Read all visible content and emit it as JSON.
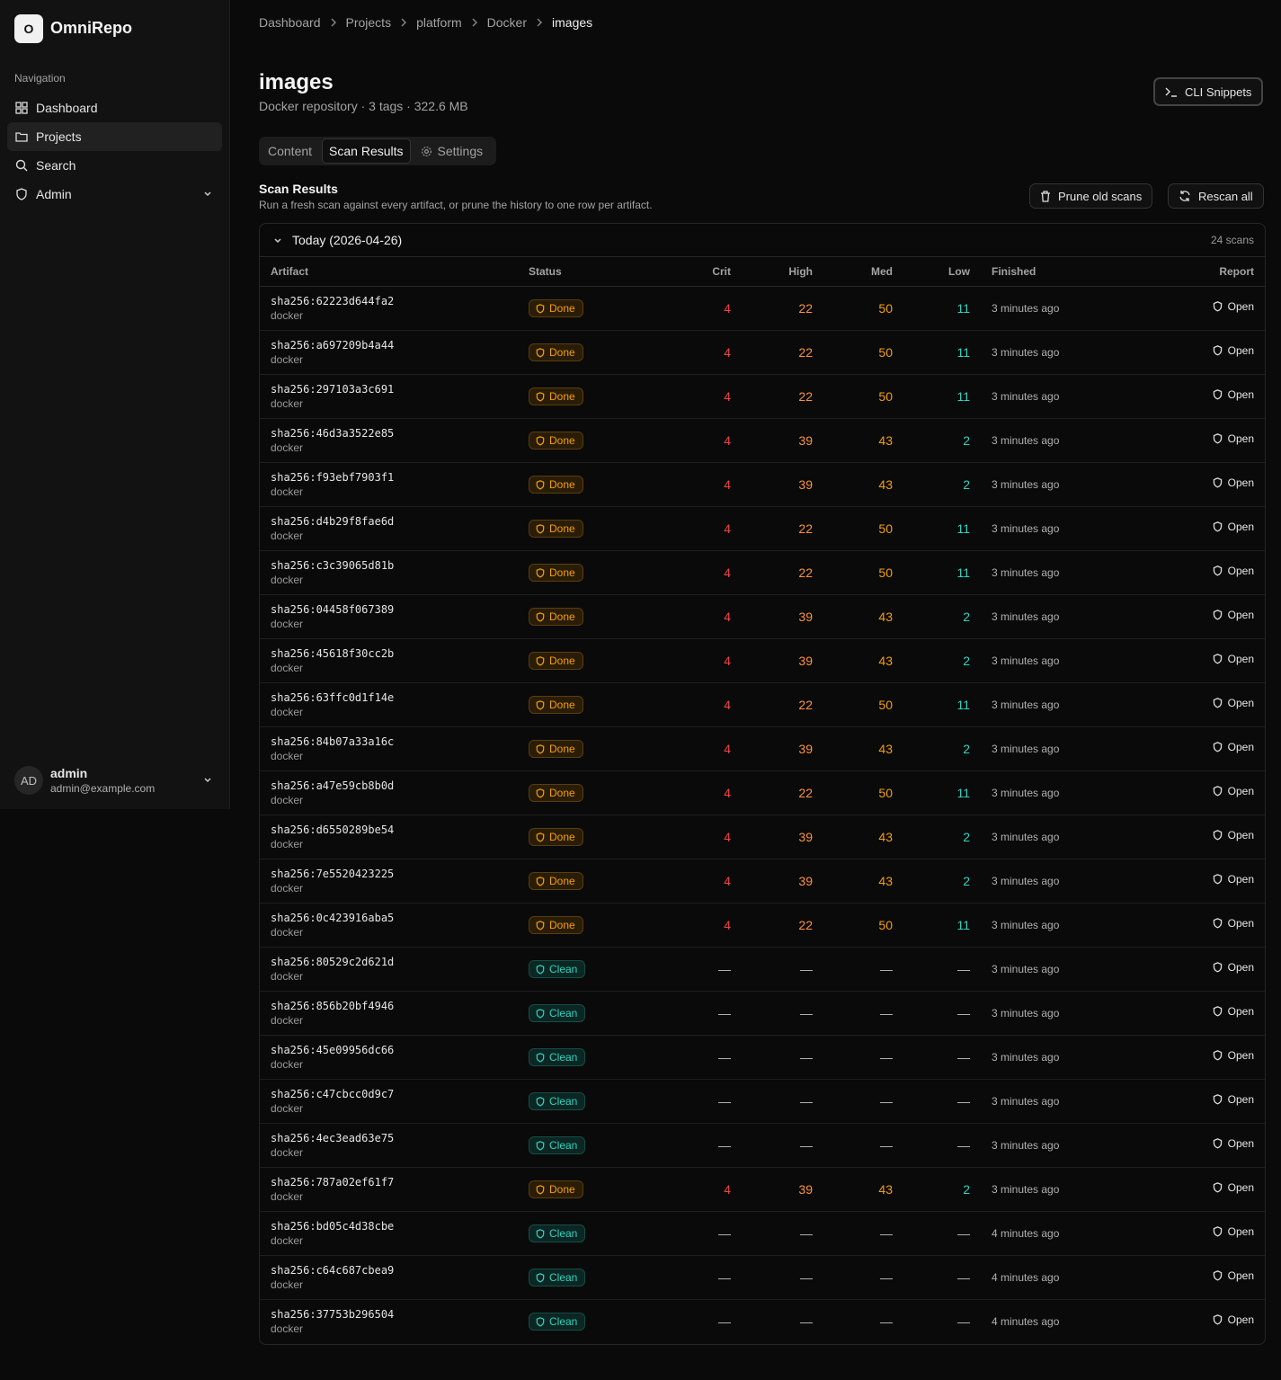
{
  "sidebar": {
    "logo_letter": "O",
    "brand": "OmniRepo",
    "section": "Navigation",
    "nav": [
      "Dashboard",
      "Projects",
      "Search",
      "Admin"
    ],
    "user": {
      "initials": "AD",
      "name": "admin",
      "email": "admin@example.com"
    }
  },
  "breadcrumbs": [
    "Dashboard",
    "Projects",
    "platform",
    "Docker",
    "images"
  ],
  "header": {
    "title": "images",
    "subtitle": "Docker repository · 3 tags · 322.6 MB",
    "button": "CLI Snippets"
  },
  "tabs": [
    "Content",
    "Scan Results",
    "Settings"
  ],
  "section": {
    "title": "Scan Results",
    "description": "Run a fresh scan against every artifact, or prune the history to one row per artifact.",
    "buttons": [
      "Prune old scans",
      "Rescan all"
    ]
  },
  "group": {
    "label": "Today (2026-04-26)",
    "count": "24 scans"
  },
  "table": {
    "columns": [
      "Artifact",
      "Status",
      "Crit",
      "High",
      "Med",
      "Low",
      "Finished",
      "Report"
    ],
    "rows": [
      [
        "sha256:62223d644fa2",
        "docker",
        "Done",
        4,
        22,
        50,
        11,
        "3 minutes ago",
        "Open"
      ],
      [
        "sha256:a697209b4a44",
        "docker",
        "Done",
        4,
        22,
        50,
        11,
        "3 minutes ago",
        "Open"
      ],
      [
        "sha256:297103a3c691",
        "docker",
        "Done",
        4,
        22,
        50,
        11,
        "3 minutes ago",
        "Open"
      ],
      [
        "sha256:46d3a3522e85",
        "docker",
        "Done",
        4,
        39,
        43,
        2,
        "3 minutes ago",
        "Open"
      ],
      [
        "sha256:f93ebf7903f1",
        "docker",
        "Done",
        4,
        39,
        43,
        2,
        "3 minutes ago",
        "Open"
      ],
      [
        "sha256:d4b29f8fae6d",
        "docker",
        "Done",
        4,
        22,
        50,
        11,
        "3 minutes ago",
        "Open"
      ],
      [
        "sha256:c3c39065d81b",
        "docker",
        "Done",
        4,
        22,
        50,
        11,
        "3 minutes ago",
        "Open"
      ],
      [
        "sha256:04458f067389",
        "docker",
        "Done",
        4,
        39,
        43,
        2,
        "3 minutes ago",
        "Open"
      ],
      [
        "sha256:45618f30cc2b",
        "docker",
        "Done",
        4,
        39,
        43,
        2,
        "3 minutes ago",
        "Open"
      ],
      [
        "sha256:63ffc0d1f14e",
        "docker",
        "Done",
        4,
        22,
        50,
        11,
        "3 minutes ago",
        "Open"
      ],
      [
        "sha256:84b07a33a16c",
        "docker",
        "Done",
        4,
        39,
        43,
        2,
        "3 minutes ago",
        "Open"
      ],
      [
        "sha256:a47e59cb8b0d",
        "docker",
        "Done",
        4,
        22,
        50,
        11,
        "3 minutes ago",
        "Open"
      ],
      [
        "sha256:d6550289be54",
        "docker",
        "Done",
        4,
        39,
        43,
        2,
        "3 minutes ago",
        "Open"
      ],
      [
        "sha256:7e5520423225",
        "docker",
        "Done",
        4,
        39,
        43,
        2,
        "3 minutes ago",
        "Open"
      ],
      [
        "sha256:0c423916aba5",
        "docker",
        "Done",
        4,
        22,
        50,
        11,
        "3 minutes ago",
        "Open"
      ],
      [
        "sha256:80529c2d621d",
        "docker",
        "Clean",
        "—",
        "—",
        "—",
        "—",
        "3 minutes ago",
        "Open"
      ],
      [
        "sha256:856b20bf4946",
        "docker",
        "Clean",
        "—",
        "—",
        "—",
        "—",
        "3 minutes ago",
        "Open"
      ],
      [
        "sha256:45e09956dc66",
        "docker",
        "Clean",
        "—",
        "—",
        "—",
        "—",
        "3 minutes ago",
        "Open"
      ],
      [
        "sha256:c47cbcc0d9c7",
        "docker",
        "Clean",
        "—",
        "—",
        "—",
        "—",
        "3 minutes ago",
        "Open"
      ],
      [
        "sha256:4ec3ead63e75",
        "docker",
        "Clean",
        "—",
        "—",
        "—",
        "—",
        "3 minutes ago",
        "Open"
      ],
      [
        "sha256:787a02ef61f7",
        "docker",
        "Done",
        4,
        39,
        43,
        2,
        "3 minutes ago",
        "Open"
      ],
      [
        "sha256:bd05c4d38cbe",
        "docker",
        "Clean",
        "—",
        "—",
        "—",
        "—",
        "4 minutes ago",
        "Open"
      ],
      [
        "sha256:c64c687cbea9",
        "docker",
        "Clean",
        "—",
        "—",
        "—",
        "—",
        "4 minutes ago",
        "Open"
      ],
      [
        "sha256:37753b296504",
        "docker",
        "Clean",
        "—",
        "—",
        "—",
        "—",
        "4 minutes ago",
        "Open"
      ]
    ]
  }
}
